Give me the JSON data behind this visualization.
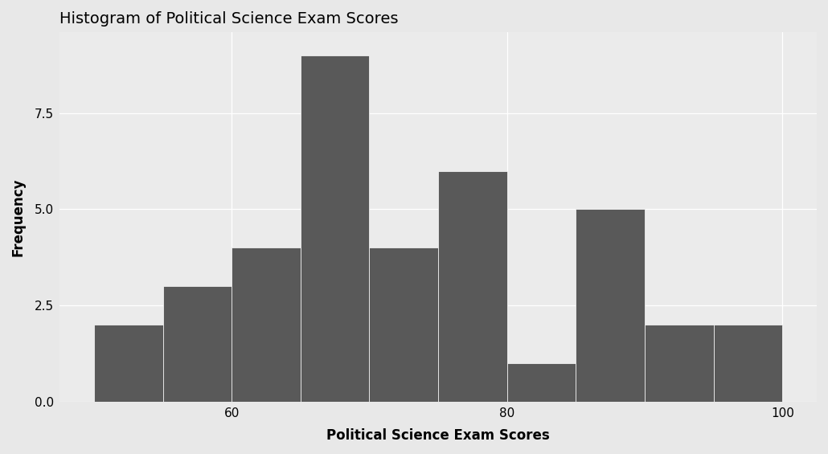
{
  "title": "Histogram of Political Science Exam Scores",
  "xlabel": "Political Science Exam Scores",
  "ylabel": "Frequency",
  "bin_edges": [
    50,
    55,
    60,
    65,
    70,
    75,
    80,
    85,
    90,
    95,
    100
  ],
  "counts": [
    2,
    3,
    4,
    9,
    4,
    6,
    1,
    5,
    2,
    2
  ],
  "bar_color": "#595959",
  "bar_edge_color": "#ffffff",
  "bar_edge_width": 0.5,
  "outer_bg": "#e8e8e8",
  "panel_bg": "#ebebeb",
  "grid_color": "#ffffff",
  "title_fontsize": 14,
  "axis_label_fontsize": 12,
  "tick_fontsize": 11,
  "ylim": [
    0,
    9.6
  ],
  "yticks": [
    0.0,
    2.5,
    5.0,
    7.5
  ],
  "ytick_labels": [
    "0.0",
    "2.5",
    "5.0",
    "7.5"
  ],
  "xticks": [
    60,
    80,
    100
  ],
  "xtick_labels": [
    "60",
    "80",
    "100"
  ],
  "xlim": [
    47.5,
    102.5
  ]
}
